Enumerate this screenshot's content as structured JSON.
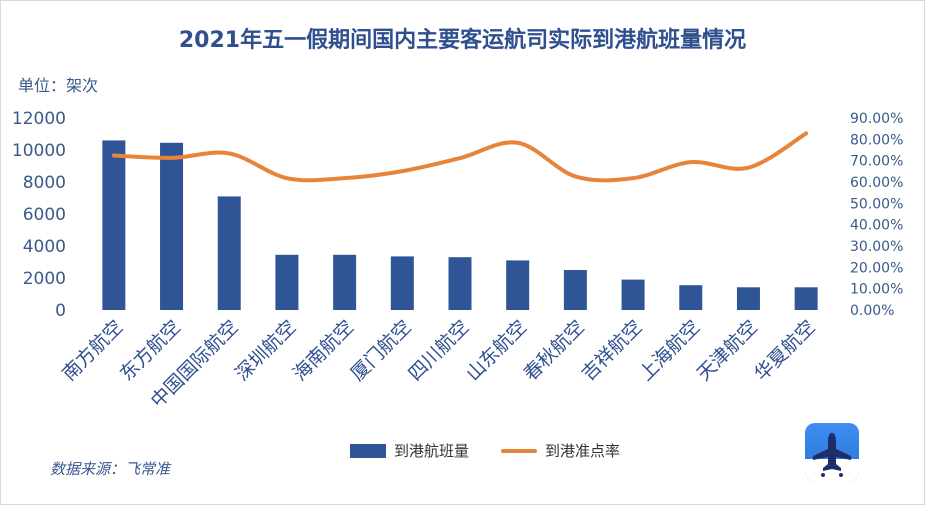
{
  "title": "2021年五一假期间国内主要客运航司实际到港航班量情况",
  "unit_label": "单位：架次",
  "source_label": "数据来源：飞常准",
  "colors": {
    "bar": "#2f5597",
    "line": "#e8833a",
    "text": "#3a5a8c"
  },
  "legend": {
    "bar_label": "到港航班量",
    "line_label": "到港准点率"
  },
  "chart_data": {
    "type": "bar",
    "title": "2021年五一假期间国内主要客运航司实际到港航班量情况",
    "categories": [
      "南方航空",
      "东方航空",
      "中国国际航空",
      "深圳航空",
      "海南航空",
      "厦门航空",
      "四川航空",
      "山东航空",
      "春秋航空",
      "吉祥航空",
      "上海航空",
      "天津航空",
      "华夏航空"
    ],
    "series": [
      {
        "name": "到港航班量",
        "type": "bar",
        "axis": "left",
        "values": [
          10600,
          10450,
          7100,
          3450,
          3450,
          3350,
          3300,
          3100,
          2500,
          1900,
          1550,
          1420,
          1420
        ]
      },
      {
        "name": "到港准点率",
        "type": "line",
        "axis": "right",
        "values": [
          0.724,
          0.713,
          0.734,
          0.618,
          0.618,
          0.651,
          0.712,
          0.784,
          0.626,
          0.618,
          0.693,
          0.667,
          0.828
        ]
      }
    ],
    "y_left": {
      "min": 0,
      "max": 12000,
      "ticks": [
        "0",
        "2000",
        "4000",
        "6000",
        "8000",
        "10000",
        "12000"
      ]
    },
    "y_right": {
      "min": 0,
      "max": 0.9,
      "ticks": [
        "0.00%",
        "10.00%",
        "20.00%",
        "30.00%",
        "40.00%",
        "50.00%",
        "60.00%",
        "70.00%",
        "80.00%",
        "90.00%"
      ]
    },
    "grid": false,
    "legend_position": "bottom"
  },
  "logo_icon": "airplane-app-icon"
}
